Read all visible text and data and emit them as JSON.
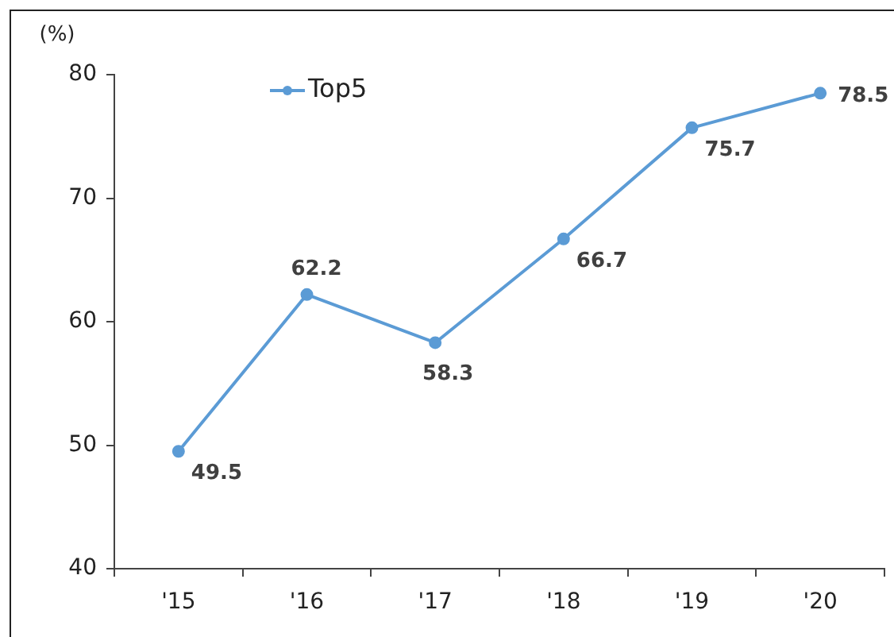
{
  "chart_data": {
    "type": "line",
    "ylabel": "(%)",
    "categories": [
      "'15",
      "'16",
      "'17",
      "'18",
      "'19",
      "'20"
    ],
    "series": [
      {
        "name": "Top5",
        "color": "#5b9bd5",
        "values": [
          49.5,
          62.2,
          58.3,
          66.7,
          75.7,
          78.5
        ]
      }
    ],
    "ylim": [
      40,
      80
    ],
    "yticks": [
      40,
      50,
      60,
      70,
      80
    ],
    "grid": false,
    "legend": "top left",
    "marker": "circle",
    "line_style": "solid",
    "data_labels": true
  }
}
